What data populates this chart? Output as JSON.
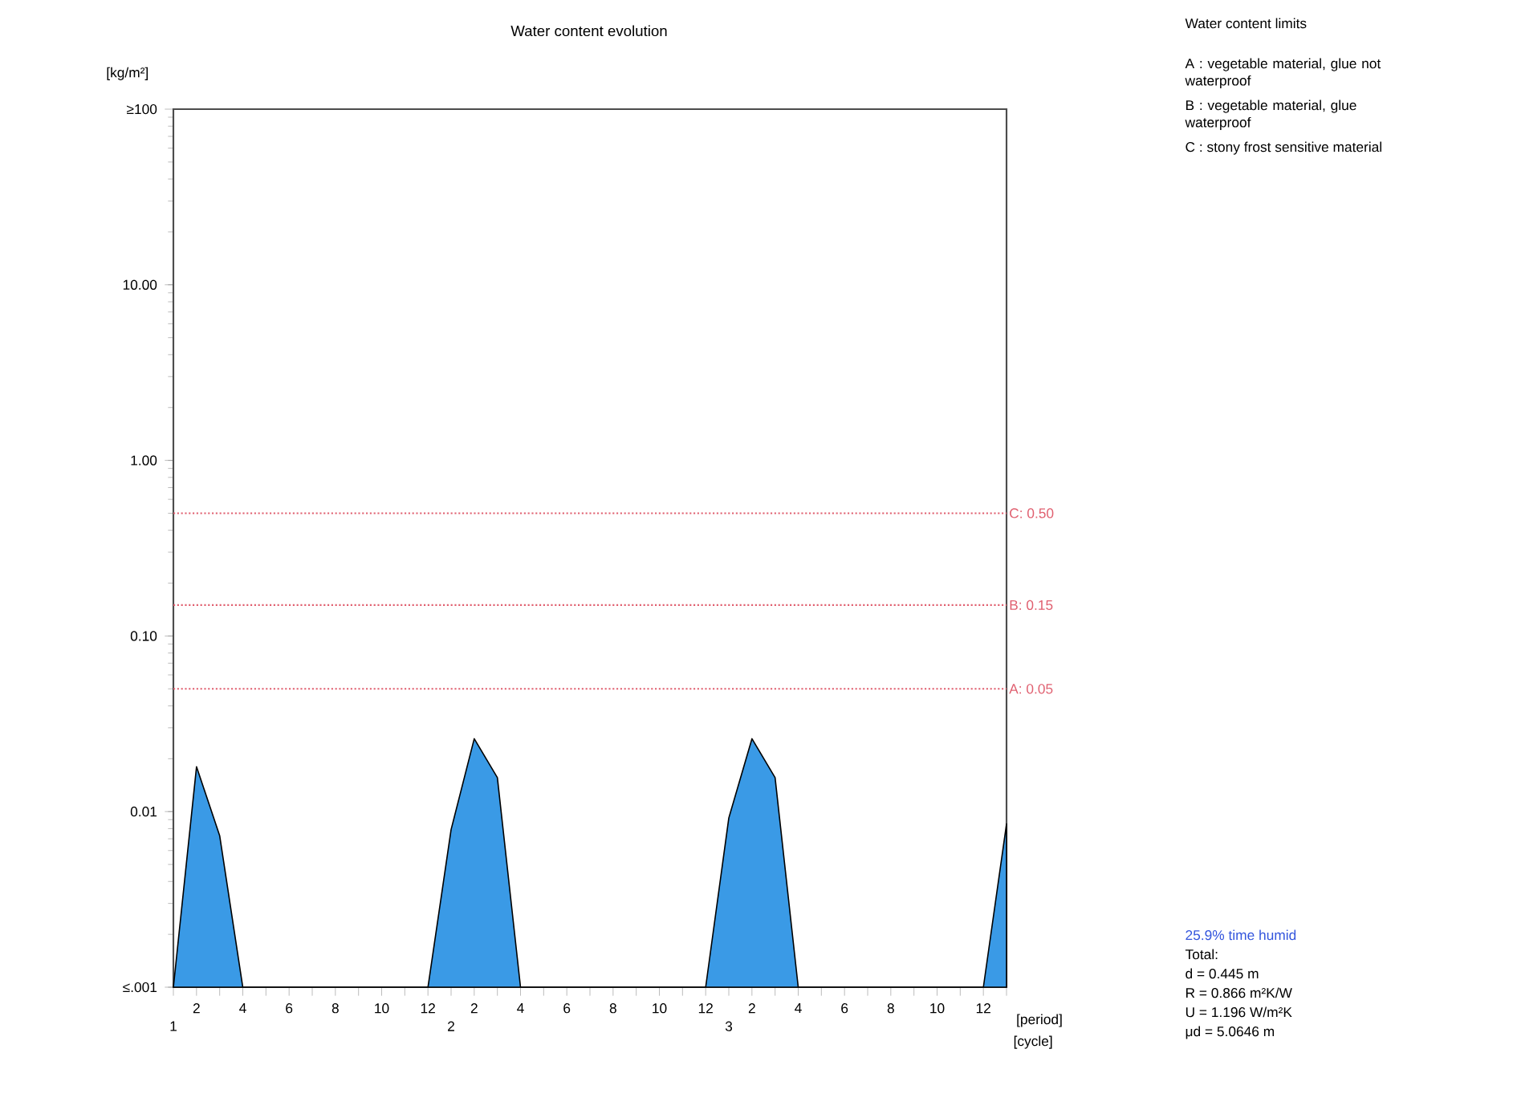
{
  "chart_data": {
    "type": "area",
    "title": "Water content evolution",
    "ylabel": "[kg/m²]",
    "xlabel": "[period]",
    "log": "y",
    "ylim": [
      0.001,
      100
    ],
    "yticks": [
      {
        "value": 0.001,
        "label": "≤.001"
      },
      {
        "value": 0.01,
        "label": "0.01"
      },
      {
        "value": 0.1,
        "label": "0.10"
      },
      {
        "value": 1,
        "label": "1.00"
      },
      {
        "value": 10,
        "label": "10.00"
      },
      {
        "value": 100,
        "label": "≥100"
      }
    ],
    "categories": [
      null,
      "2",
      null,
      "4",
      null,
      "6",
      null,
      "8",
      null,
      "10",
      null,
      "12",
      null,
      "2",
      null,
      "4",
      null,
      "6",
      null,
      "8",
      null,
      "10",
      null,
      "12",
      null,
      "2",
      null,
      "4",
      null,
      "6",
      null,
      "8",
      null,
      "10",
      null,
      "12",
      null
    ],
    "series": [
      {
        "color": "#3a9ae6",
        "values": [
          0.001,
          0.018,
          0.0073,
          0.001,
          0.001,
          0.001,
          0.001,
          0.001,
          0.001,
          0.001,
          0.001,
          0.001,
          0.0079,
          0.026,
          0.0156,
          0.001,
          0.001,
          0.001,
          0.001,
          0.001,
          0.001,
          0.001,
          0.001,
          0.001,
          0.0092,
          0.026,
          0.0156,
          0.001,
          0.001,
          0.001,
          0.001,
          0.001,
          0.001,
          0.001,
          0.001,
          0.001,
          0.0085
        ]
      }
    ],
    "ref_lines": [
      {
        "axis": "y",
        "value": 0.5,
        "label": "C: 0.50",
        "color": "#e06070",
        "line_style": "dotted"
      },
      {
        "axis": "y",
        "value": 0.15,
        "label": "B: 0.15",
        "color": "#e06070",
        "line_style": "dotted"
      },
      {
        "axis": "y",
        "value": 0.05,
        "label": "A: 0.05",
        "color": "#e06070",
        "line_style": "dotted"
      }
    ],
    "grid": false,
    "annotations": [
      "[cycle]",
      "1",
      "2",
      "3",
      "Water content limits",
      "A : vegetable material, glue not waterproof",
      "B : vegetable material, glue waterproof",
      "C : stony frost sensitive material",
      "25.9% time humid",
      "Total:",
      "d = 0.445 m",
      "R = 0.866 m²K/W",
      "U = 1.196 W/m²K",
      "μd = 5.0646 m"
    ]
  }
}
